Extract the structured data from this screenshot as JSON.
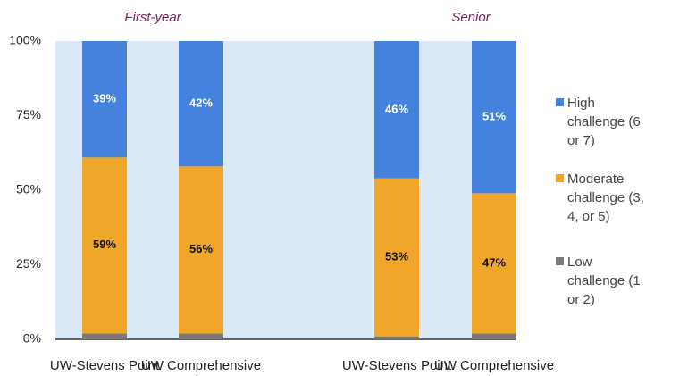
{
  "chart_data": {
    "type": "stacked_bar",
    "series": [
      {
        "name": "Low challenge (1 or 2)",
        "color": "#7a7a7a"
      },
      {
        "name": "Moderate challenge (3, 4, or 5)",
        "color": "#f0a628"
      },
      {
        "name": "High challenge (6 or 7)",
        "color": "#4482de"
      }
    ],
    "panels": [
      {
        "title": "First-year",
        "categories": [
          "UW-Stevens Point",
          "UW Comprehensive"
        ],
        "series": [
          {
            "values": [
              2,
              2
            ]
          },
          {
            "values": [
              59,
              56
            ],
            "value_labels": [
              "59%",
              "56%"
            ]
          },
          {
            "values": [
              39,
              42
            ],
            "value_labels": [
              "39%",
              "42%"
            ]
          }
        ]
      },
      {
        "title": "Senior",
        "categories": [
          "UW-Stevens Point",
          "UW Comprehensive"
        ],
        "series": [
          {
            "values": [
              1,
              2
            ]
          },
          {
            "values": [
              53,
              47
            ],
            "value_labels": [
              "53%",
              "47%"
            ]
          },
          {
            "values": [
              46,
              51
            ],
            "value_labels": [
              "46%",
              "51%"
            ]
          }
        ]
      }
    ],
    "ylim": [
      0,
      100
    ],
    "yticks": [
      {
        "value": 0,
        "label": "0%"
      },
      {
        "value": 25,
        "label": "25%"
      },
      {
        "value": 50,
        "label": "50%"
      },
      {
        "value": 75,
        "label": "75%"
      },
      {
        "value": 100,
        "label": "100%"
      }
    ]
  }
}
